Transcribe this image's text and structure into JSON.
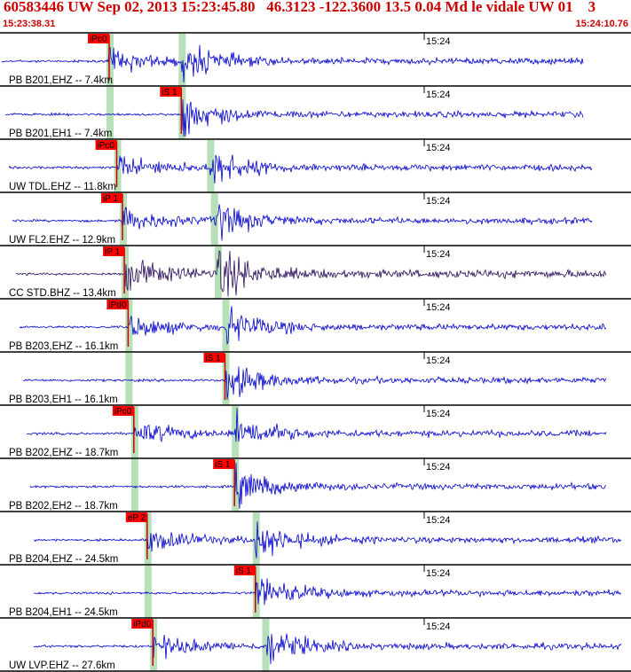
{
  "header": {
    "title": "60583446 UW Sep 02, 2013 15:23:45.80   46.3123 -122.3600 13.5 0.04 Md le vidale UW 01    3",
    "start_time": "15:23:38.31",
    "end_time": "15:24:10.76",
    "minute_label": "15:24"
  },
  "colors": {
    "trace": "#0000cc",
    "trace_dark": "#2a0a5a",
    "pick_box": "#ff0000",
    "pick_line": "#cc0000",
    "shade": "#b8e0b8",
    "border": "#000000"
  },
  "channels": [
    {
      "label": "PB B201,EHZ -- 7.4km",
      "pick": "iPc0",
      "pick_time": 5.1,
      "s_time": 8.9,
      "color": "trace"
    },
    {
      "label": "PB B201,EH1 -- 7.4km",
      "pick": "iS 1",
      "pick_time": 8.9,
      "s_time": 8.9,
      "color": "trace"
    },
    {
      "label": "UW TDL.EHZ -- 11.8km",
      "pick": "iPc0",
      "pick_time": 5.5,
      "s_time": 10.4,
      "color": "trace"
    },
    {
      "label": "UW FL2.EHZ -- 12.9km",
      "pick": "iP 1",
      "pick_time": 5.8,
      "s_time": 10.6,
      "color": "trace"
    },
    {
      "label": "CC STD.BHZ -- 13.4km",
      "pick": "iP 1",
      "pick_time": 5.9,
      "s_time": 10.8,
      "color": "trace_dark"
    },
    {
      "label": "PB B203,EHZ -- 16.1km",
      "pick": "iPd0",
      "pick_time": 6.1,
      "s_time": 11.2,
      "color": "trace"
    },
    {
      "label": "PB B203,EH1 -- 16.1km",
      "pick": "iS 1",
      "pick_time": 11.2,
      "s_time": 11.2,
      "color": "trace"
    },
    {
      "label": "PB B202,EHZ -- 18.7km",
      "pick": "iPc0",
      "pick_time": 6.4,
      "s_time": 11.7,
      "color": "trace"
    },
    {
      "label": "PB B202,EH2 -- 18.7km",
      "pick": "iS 1",
      "pick_time": 11.7,
      "s_time": 11.7,
      "color": "trace"
    },
    {
      "label": "PB B204,EHZ -- 24.5km",
      "pick": "eP 2",
      "pick_time": 7.1,
      "s_time": 12.8,
      "color": "trace"
    },
    {
      "label": "PB B204,EH1 -- 24.5km",
      "pick": "iS 1",
      "pick_time": 12.8,
      "s_time": 12.8,
      "color": "trace"
    },
    {
      "label": "UW LVP.EHZ -- 27.6km",
      "pick": "iPd0",
      "pick_time": 7.4,
      "s_time": 13.3,
      "color": "trace"
    }
  ]
}
